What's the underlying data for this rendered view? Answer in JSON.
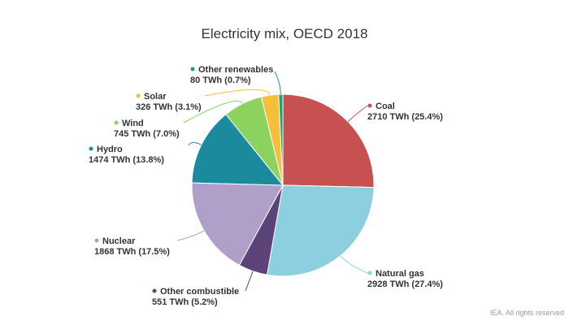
{
  "chart_data": {
    "type": "pie",
    "title": "Electricity mix, OECD 2018",
    "unit": "TWh",
    "slices": [
      {
        "name": "Coal",
        "value": 2710,
        "value_label": "2710 TWh (25.4%)",
        "color": "#c75050"
      },
      {
        "name": "Natural gas",
        "value": 2928,
        "value_label": "2928 TWh (27.4%)",
        "color": "#8ecfdf"
      },
      {
        "name": "Other combustible",
        "value": 551,
        "value_label": "551 TWh (5.2%)",
        "color": "#5c4478"
      },
      {
        "name": "Nuclear",
        "value": 1868,
        "value_label": "1868 TWh (17.5%)",
        "color": "#b09fc8"
      },
      {
        "name": "Hydro",
        "value": 1474,
        "value_label": "1474 TWh (13.8%)",
        "color": "#1b8a9c"
      },
      {
        "name": "Wind",
        "value": 745,
        "value_label": "745 TWh (7.0%)",
        "color": "#8cd25e"
      },
      {
        "name": "Solar",
        "value": 326,
        "value_label": "326 TWh (3.1%)",
        "color": "#f5bf3a"
      },
      {
        "name": "Other renewables",
        "value": 80,
        "value_label": "80 TWh (0.7%)",
        "color": "#1aa36a"
      }
    ]
  },
  "credits": "IEA. All rights reserved"
}
